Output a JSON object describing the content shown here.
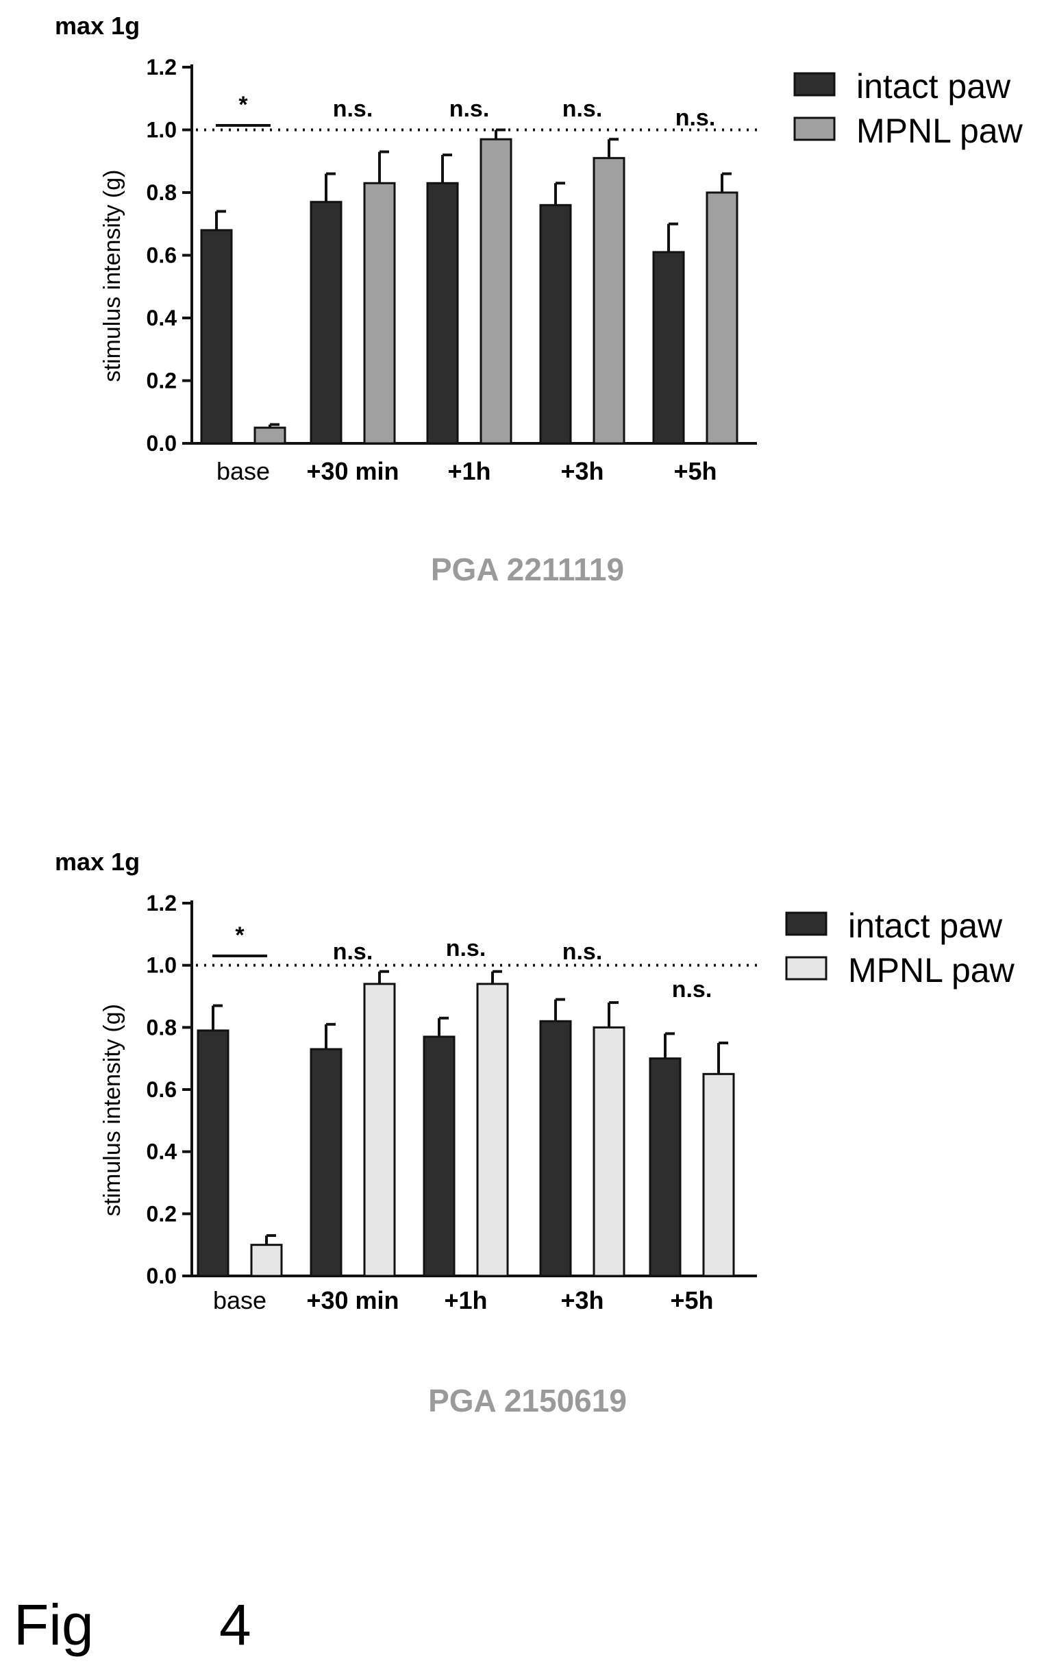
{
  "figure_label": {
    "word": "Fig",
    "number": "4"
  },
  "chart_data": [
    {
      "type": "bar",
      "max_note": "max 1g",
      "caption": "PGA 2211119",
      "ylabel": "stimulus intensity (g)",
      "ylim": [
        0,
        1.2
      ],
      "yticks": [
        "0.0",
        "0.2",
        "0.4",
        "0.6",
        "0.8",
        "1.0",
        "1.2"
      ],
      "reference_line": 1.0,
      "categories": [
        "base",
        "+30 min",
        "+1h",
        "+3h",
        "+5h"
      ],
      "category_bold": [
        false,
        true,
        true,
        true,
        true
      ],
      "series": [
        {
          "name": "intact paw",
          "color": "#2e2e2e",
          "values": [
            0.68,
            0.77,
            0.83,
            0.76,
            0.61
          ],
          "errors": [
            0.06,
            0.09,
            0.09,
            0.07,
            0.09
          ]
        },
        {
          "name": "MPNL paw",
          "color": "#a0a0a0",
          "values": [
            0.05,
            0.83,
            0.97,
            0.91,
            0.8
          ],
          "errors": [
            0.01,
            0.1,
            0.03,
            0.06,
            0.06
          ]
        }
      ],
      "significance": [
        "*",
        "n.s.",
        "n.s.",
        "n.s.",
        "n.s."
      ],
      "legend_position": "top-right"
    },
    {
      "type": "bar",
      "max_note": "max 1g",
      "caption": "PGA 2150619",
      "ylabel": "stimulus intensity (g)",
      "ylim": [
        0,
        1.2
      ],
      "yticks": [
        "0.0",
        "0.2",
        "0.4",
        "0.6",
        "0.8",
        "1.0",
        "1.2"
      ],
      "reference_line": 1.0,
      "categories": [
        "base",
        "+30 min",
        "+1h",
        "+3h",
        "+5h"
      ],
      "category_bold": [
        false,
        true,
        true,
        true,
        true
      ],
      "series": [
        {
          "name": "intact paw",
          "color": "#2e2e2e",
          "values": [
            0.79,
            0.73,
            0.77,
            0.82,
            0.7
          ],
          "errors": [
            0.08,
            0.08,
            0.06,
            0.07,
            0.08
          ]
        },
        {
          "name": "MPNL paw",
          "color": "#e6e6e6",
          "values": [
            0.1,
            0.94,
            0.94,
            0.8,
            0.65
          ],
          "errors": [
            0.03,
            0.04,
            0.04,
            0.08,
            0.1
          ]
        }
      ],
      "significance": [
        "*",
        "n.s.",
        "n.s.",
        "n.s.",
        "n.s."
      ],
      "legend_position": "top-right"
    }
  ]
}
